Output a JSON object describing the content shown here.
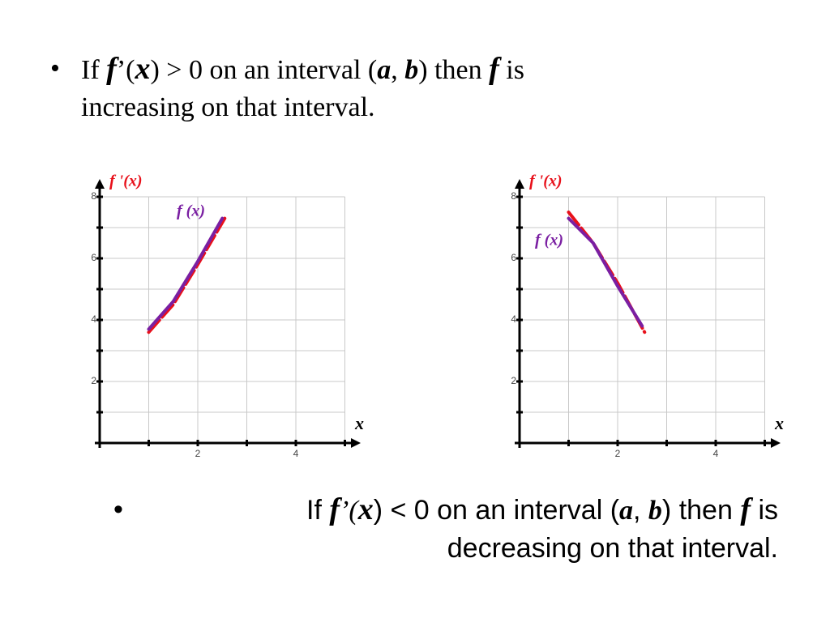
{
  "bullets": [
    {
      "parts": [
        "If",
        "f",
        "’(",
        "x",
        ") > 0 on an interval (",
        "a",
        ", ",
        "b",
        ") then",
        "f",
        "is",
        "increasing on that interval."
      ]
    },
    {
      "parts": [
        "If",
        "f",
        "’(",
        "x",
        ") < 0 on an interval (",
        "a",
        ", ",
        "b",
        ") then",
        "f",
        "is",
        "decreasing on that interval."
      ]
    }
  ],
  "chart_data": [
    {
      "type": "line",
      "y_label": "f '(x)",
      "x_label": "x",
      "xlim": [
        0,
        5
      ],
      "ylim": [
        0,
        8
      ],
      "xticks": [
        2,
        4
      ],
      "yticks": [
        2,
        4,
        6,
        8
      ],
      "grid_x": [
        1,
        2,
        3,
        4,
        5
      ],
      "grid_y": [
        1,
        2,
        3,
        4,
        5,
        6,
        7,
        8
      ],
      "grid": true,
      "series": [
        {
          "name": "f (x)",
          "color": "#7a1fa2",
          "x": [
            1,
            1.5,
            2,
            2.5
          ],
          "values": [
            3.7,
            4.6,
            5.9,
            7.3
          ]
        },
        {
          "color": "#e8101a",
          "x": [
            1,
            1.5,
            2,
            2.55
          ],
          "values": [
            3.6,
            4.5,
            5.8,
            7.3
          ]
        }
      ]
    },
    {
      "type": "line",
      "y_label": "f '(x)",
      "x_label": "x",
      "xlim": [
        0,
        5
      ],
      "ylim": [
        0,
        8
      ],
      "xticks": [
        2,
        4
      ],
      "yticks": [
        2,
        4,
        6,
        8
      ],
      "grid_x": [
        1,
        2,
        3,
        4,
        5
      ],
      "grid_y": [
        1,
        2,
        3,
        4,
        5,
        6,
        7,
        8
      ],
      "grid": true,
      "series": [
        {
          "name": "f (x)",
          "color": "#7a1fa2",
          "x": [
            1,
            1.5,
            2,
            2.5
          ],
          "values": [
            7.3,
            6.5,
            5.1,
            3.8
          ]
        },
        {
          "color": "#e8101a",
          "x": [
            1,
            1.5,
            2,
            2.55
          ],
          "values": [
            7.5,
            6.5,
            5.2,
            3.6
          ]
        }
      ]
    }
  ]
}
